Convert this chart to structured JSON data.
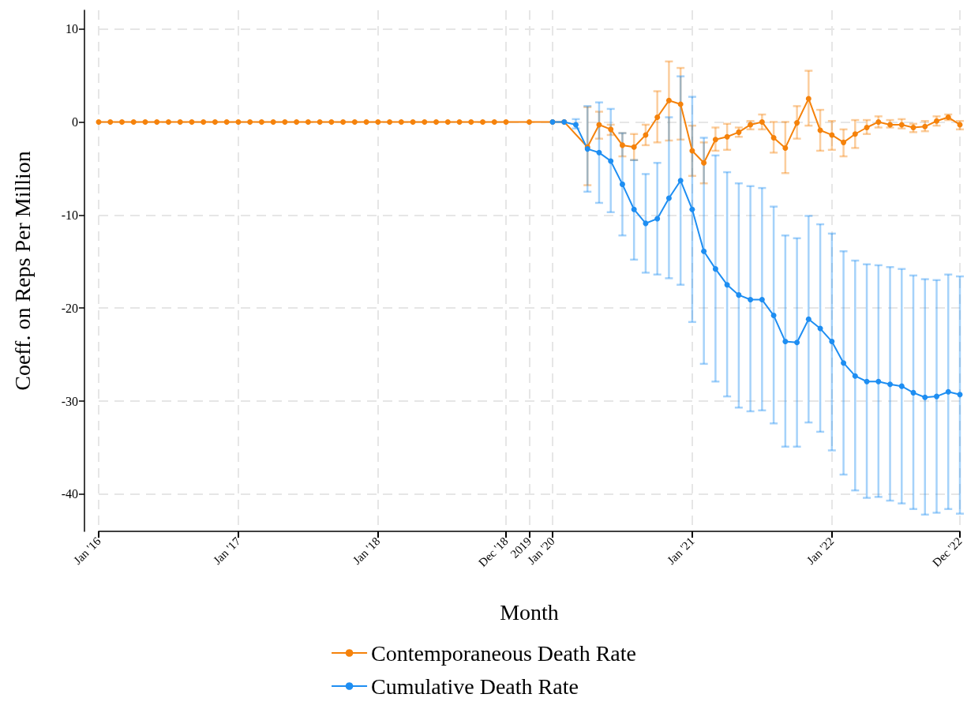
{
  "chart_data": {
    "type": "line",
    "xlabel": "Month",
    "ylabel": "Coeff. on Reps Per Million",
    "categories": [
      "Jan '16",
      null,
      null,
      null,
      null,
      null,
      null,
      null,
      null,
      null,
      null,
      null,
      "Jan '17",
      null,
      null,
      null,
      null,
      null,
      null,
      null,
      null,
      null,
      null,
      null,
      "Jan '18",
      null,
      null,
      null,
      null,
      null,
      null,
      null,
      null,
      null,
      null,
      "Dec '18",
      null,
      "2019",
      null,
      "Jan '20",
      null,
      null,
      null,
      null,
      null,
      null,
      null,
      null,
      null,
      null,
      null,
      "Jan '21",
      null,
      null,
      null,
      null,
      null,
      null,
      null,
      null,
      null,
      null,
      null,
      "Jan '22",
      null,
      null,
      null,
      null,
      null,
      null,
      null,
      null,
      null,
      null,
      "Dec '22"
    ],
    "series": [
      {
        "name": "Contemporaneous Death Rate",
        "color": "#f5820b",
        "values": [
          0,
          0,
          0,
          0,
          0,
          0,
          0,
          0,
          0,
          0,
          0,
          0,
          0,
          0,
          0,
          0,
          0,
          0,
          0,
          0,
          0,
          0,
          0,
          0,
          0,
          0,
          0,
          0,
          0,
          0,
          0,
          0,
          0,
          0,
          0,
          0,
          null,
          0,
          null,
          0,
          0,
          null,
          -2.7,
          -0.3,
          -0.8,
          -2.5,
          -2.7,
          -1.4,
          0.5,
          2.3,
          1.9,
          -3.1,
          -4.4,
          -1.9,
          -1.6,
          -1.1,
          -0.3,
          0,
          -1.7,
          -2.8,
          -0.1,
          2.5,
          -0.9,
          -1.4,
          -2.2,
          -1.3,
          -0.6,
          0,
          -0.3,
          -0.3,
          -0.6,
          -0.5,
          0.1,
          0.5,
          -0.3
        ],
        "errors": [
          null,
          null,
          null,
          null,
          null,
          null,
          null,
          null,
          null,
          null,
          null,
          null,
          null,
          null,
          null,
          null,
          null,
          null,
          null,
          null,
          null,
          null,
          null,
          null,
          null,
          null,
          null,
          null,
          null,
          null,
          null,
          null,
          null,
          null,
          null,
          null,
          null,
          null,
          null,
          null,
          null,
          null,
          [
            -6.8,
            1.6
          ],
          [
            -1.8,
            1.1
          ],
          [
            -1.4,
            -0.3
          ],
          [
            -3.7,
            -1.2
          ],
          [
            -4.1,
            -1.3
          ],
          [
            -2.5,
            -0.3
          ],
          [
            -2.2,
            3.3
          ],
          [
            -2.0,
            6.5
          ],
          [
            -1.9,
            5.8
          ],
          [
            -5.8,
            -0.4
          ],
          [
            -6.6,
            -2.2
          ],
          [
            -3.1,
            -0.6
          ],
          [
            -3.0,
            -0.2
          ],
          [
            -1.6,
            -0.6
          ],
          [
            -0.8,
            0.1
          ],
          [
            -0.8,
            0.8
          ],
          [
            -3.3,
            0
          ],
          [
            -5.5,
            0
          ],
          [
            -1.8,
            1.7
          ],
          [
            -0.4,
            5.5
          ],
          [
            -3.1,
            1.3
          ],
          [
            -3.0,
            0.1
          ],
          [
            -3.7,
            -0.8
          ],
          [
            -2.8,
            0.2
          ],
          [
            -1.3,
            0.2
          ],
          [
            -0.6,
            0.6
          ],
          [
            -0.6,
            0.2
          ],
          [
            -0.7,
            0.3
          ],
          [
            -1.1,
            -0.2
          ],
          [
            -1.0,
            0.1
          ],
          [
            -0.4,
            0.6
          ],
          [
            0.2,
            0.8
          ],
          [
            -0.8,
            0.1
          ]
        ]
      },
      {
        "name": "Cumulative Death Rate",
        "color": "#1e8ef2",
        "values": [
          null,
          null,
          null,
          null,
          null,
          null,
          null,
          null,
          null,
          null,
          null,
          null,
          null,
          null,
          null,
          null,
          null,
          null,
          null,
          null,
          null,
          null,
          null,
          null,
          null,
          null,
          null,
          null,
          null,
          null,
          null,
          null,
          null,
          null,
          null,
          null,
          null,
          null,
          null,
          0,
          0,
          -0.3,
          -2.9,
          -3.3,
          -4.2,
          -6.7,
          -9.4,
          -10.9,
          -10.4,
          -8.2,
          -6.3,
          -9.4,
          -13.9,
          -15.8,
          -17.5,
          -18.6,
          -19.1,
          -19.1,
          -20.8,
          -23.6,
          -23.7,
          -21.2,
          -22.2,
          -23.6,
          -25.9,
          -27.3,
          -27.9,
          -27.9,
          -28.2,
          -28.4,
          -29.1,
          -29.6,
          -29.5,
          -29.0,
          -29.3
        ],
        "errors": [
          null,
          null,
          null,
          null,
          null,
          null,
          null,
          null,
          null,
          null,
          null,
          null,
          null,
          null,
          null,
          null,
          null,
          null,
          null,
          null,
          null,
          null,
          null,
          null,
          null,
          null,
          null,
          null,
          null,
          null,
          null,
          null,
          null,
          null,
          null,
          null,
          null,
          null,
          null,
          null,
          null,
          [
            -0.7,
            0.3
          ],
          [
            -7.5,
            1.7
          ],
          [
            -8.7,
            2.1
          ],
          [
            -9.7,
            1.4
          ],
          [
            -12.2,
            -1.2
          ],
          [
            -14.8,
            -4.1
          ],
          [
            -16.2,
            -5.6
          ],
          [
            -16.4,
            -4.4
          ],
          [
            -16.8,
            0.5
          ],
          [
            -17.5,
            4.9
          ],
          [
            -21.5,
            2.7
          ],
          [
            -26.0,
            -1.7
          ],
          [
            -27.9,
            -3.6
          ],
          [
            -29.5,
            -5.4
          ],
          [
            -30.7,
            -6.6
          ],
          [
            -31.1,
            -6.9
          ],
          [
            -31.0,
            -7.1
          ],
          [
            -32.4,
            -9.1
          ],
          [
            -34.9,
            -12.2
          ],
          [
            -34.9,
            -12.5
          ],
          [
            -32.3,
            -10.1
          ],
          [
            -33.3,
            -11.0
          ],
          [
            -35.3,
            -12.0
          ],
          [
            -37.9,
            -13.9
          ],
          [
            -39.6,
            -14.9
          ],
          [
            -40.4,
            -15.3
          ],
          [
            -40.3,
            -15.4
          ],
          [
            -40.7,
            -15.6
          ],
          [
            -41.0,
            -15.8
          ],
          [
            -41.6,
            -16.5
          ],
          [
            -42.2,
            -16.9
          ],
          [
            -42.0,
            -17.0
          ],
          [
            -41.6,
            -16.4
          ],
          [
            -42.1,
            -16.6
          ]
        ]
      }
    ],
    "ylim": [
      -44,
      12
    ],
    "yticks": [
      -40,
      -30,
      -20,
      -10,
      0,
      10
    ],
    "grid": true,
    "legend": "bottom",
    "marker": "circle",
    "line_style": "solid"
  }
}
